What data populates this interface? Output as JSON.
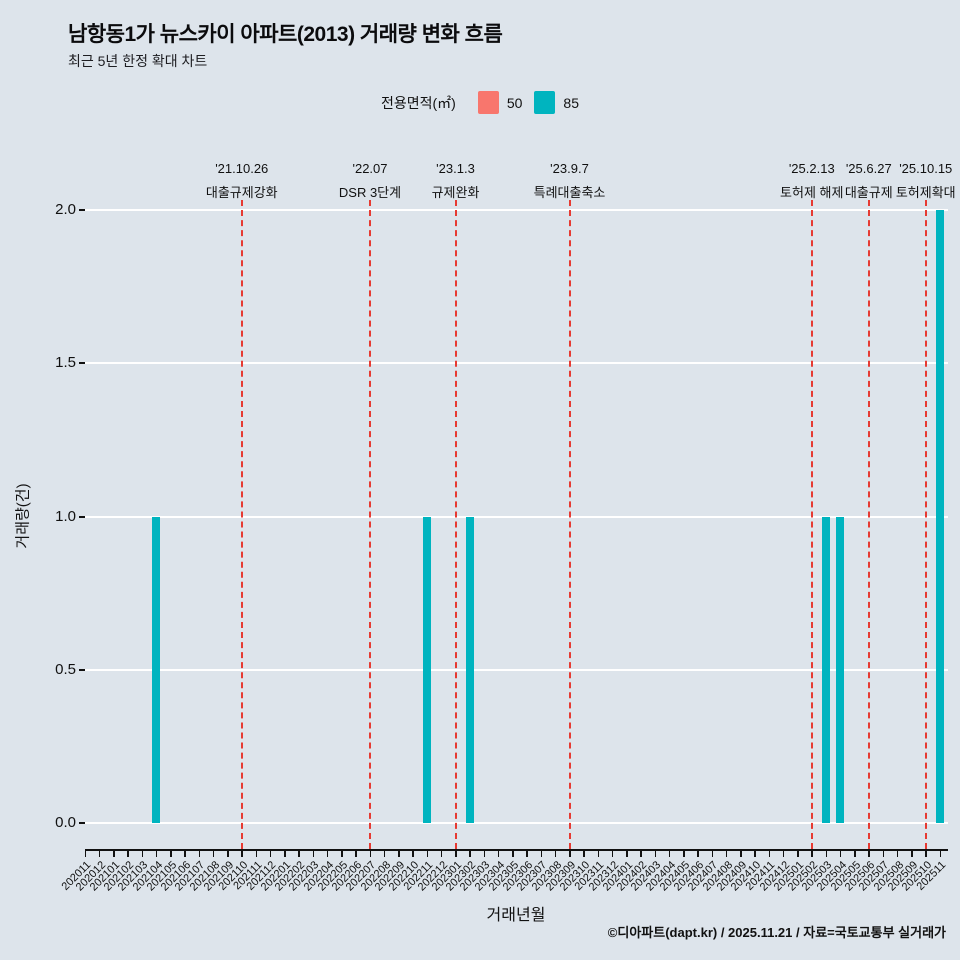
{
  "footer": {
    "credit": "©디아파트(dapt.kr) / 2025.11.21 / 자료=국토교통부 실거래가"
  },
  "chart_data": {
    "type": "bar",
    "title": "남항동1가 뉴스카이 아파트(2013) 거래량 변화 흐름",
    "subtitle": "최근 5년 한정 확대 차트",
    "xlabel": "거래년월",
    "ylabel": "거래량(건)",
    "ylim": [
      0,
      2
    ],
    "yticks": [
      "0.0",
      "0.5",
      "1.0",
      "1.5",
      "2.0"
    ],
    "grid": "horizontal-white",
    "background": "#dde4eb",
    "legend": {
      "title": "전용면적(㎡)",
      "position": "top-center",
      "entries": [
        {
          "label": "50",
          "color": "#f8766d"
        },
        {
          "label": "85",
          "color": "#00b4bf"
        }
      ]
    },
    "categories": [
      "202011",
      "202012",
      "202101",
      "202102",
      "202103",
      "202104",
      "202105",
      "202106",
      "202107",
      "202108",
      "202109",
      "202110",
      "202111",
      "202112",
      "202201",
      "202202",
      "202203",
      "202204",
      "202205",
      "202206",
      "202207",
      "202208",
      "202209",
      "202210",
      "202211",
      "202212",
      "202301",
      "202302",
      "202303",
      "202304",
      "202305",
      "202306",
      "202307",
      "202308",
      "202309",
      "202310",
      "202311",
      "202312",
      "202401",
      "202402",
      "202403",
      "202404",
      "202405",
      "202406",
      "202407",
      "202408",
      "202409",
      "202410",
      "202411",
      "202412",
      "202501",
      "202502",
      "202503",
      "202504",
      "202505",
      "202506",
      "202507",
      "202508",
      "202509",
      "202510",
      "202511"
    ],
    "series": [
      {
        "name": "50",
        "color": "#f8766d",
        "points": {}
      },
      {
        "name": "85",
        "color": "#00b4bf",
        "points": {
          "202104": 1,
          "202211": 1,
          "202302": 1,
          "202503": 1,
          "202504": 1,
          "202511": 2
        }
      }
    ],
    "events": [
      {
        "date": "'21.10.26",
        "label": "대출규제강화",
        "month": "202110"
      },
      {
        "date": "'22.07",
        "label": "DSR 3단계",
        "month": "202207"
      },
      {
        "date": "'23.1.3",
        "label": "규제완화",
        "month": "202301"
      },
      {
        "date": "'23.9.7",
        "label": "특례대출축소",
        "month": "202309"
      },
      {
        "date": "'25.2.13",
        "label": "토허제 해제",
        "month": "202502"
      },
      {
        "date": "'25.6.27",
        "label": "대출규제",
        "month": "202506"
      },
      {
        "date": "'25.10.15",
        "label": "토허제확대",
        "month": "202510"
      }
    ],
    "event_line_color": "#e63a32"
  }
}
